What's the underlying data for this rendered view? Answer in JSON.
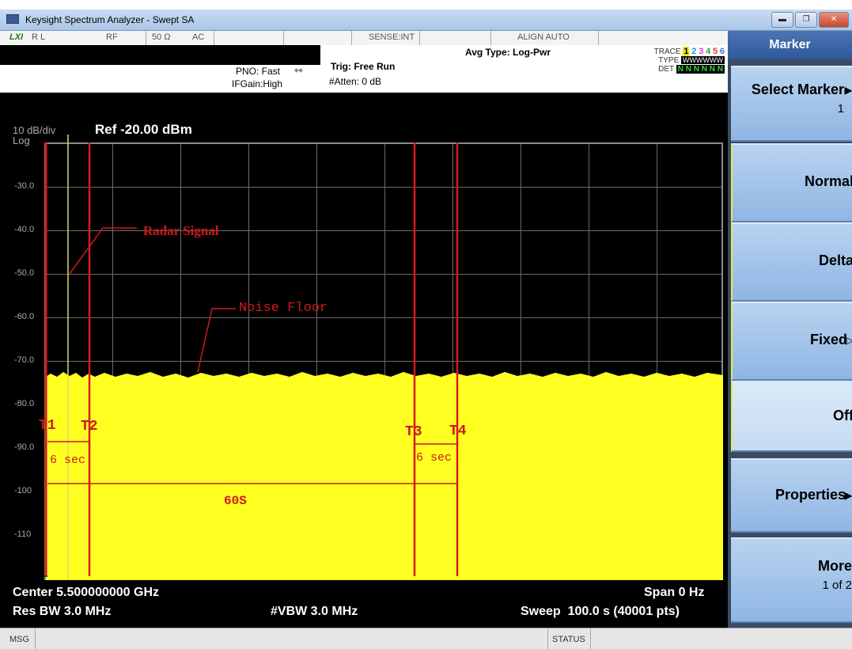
{
  "window": {
    "title": "Keysight Spectrum Analyzer - Swept SA"
  },
  "status_row": {
    "indicator": "LXI",
    "ref_label": "R L",
    "input": "RF",
    "impedance": "50 Ω",
    "coupling": "AC",
    "sense": "SENSE:INT",
    "align": "ALIGN AUTO"
  },
  "settings": {
    "pno": "PNO: Fast",
    "ifgain": "IFGain:High",
    "trig": "Trig: Free Run",
    "atten": "#Atten: 0 dB",
    "avg_type": "Avg Type: Log-Pwr"
  },
  "trace_info": {
    "trace_label": "TRACE",
    "trace_nums": [
      "1",
      "2",
      "3",
      "4",
      "5",
      "6"
    ],
    "type_label": "TYPE",
    "type_value": "WWWWWW",
    "det_label": "DET",
    "det_value": "N N N N N N"
  },
  "scale": {
    "per_div": "10 dB/div",
    "log": "Log",
    "ref": "Ref -20.00 dBm"
  },
  "y_axis": {
    "ticks": [
      "-30.0",
      "-40.0",
      "-50.0",
      "-60.0",
      "-70.0",
      "-80.0",
      "-90.0",
      "-100",
      "-110"
    ]
  },
  "annotations": {
    "radar": "Radar Signal",
    "noise": "Noise Floor",
    "t1": "T1",
    "t2": "T2",
    "t3": "T3",
    "t4": "T4",
    "six_sec_1": "6 sec",
    "six_sec_2": "6 sec",
    "sixty": "60S"
  },
  "bottom": {
    "center": "Center 5.500000000 GHz",
    "res_bw": "Res BW 3.0 MHz",
    "vbw": "#VBW 3.0 MHz",
    "span": "Span 0 Hz",
    "sweep": "Sweep  100.0 s (40001 pts)"
  },
  "softkeys": {
    "header": "Marker",
    "select_marker": "Select Marker",
    "select_marker_value": "1",
    "normal": "Normal",
    "delta": "Delta",
    "fixed": "Fixed",
    "off": "Off",
    "properties": "Properties",
    "more": "More",
    "more_page": "1 of 2"
  },
  "msgbar": {
    "msg": "MSG",
    "status": "STATUS"
  },
  "colors": {
    "trace_fill": "#ffff22",
    "marker_line": "#d41c1c",
    "annotation": "#cc1a1a",
    "radar_line": "#d8d870"
  }
}
